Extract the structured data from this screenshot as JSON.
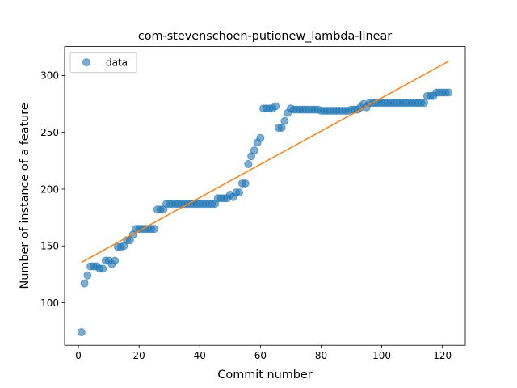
{
  "chart_data": {
    "type": "scatter",
    "title": "com-stevenschoen-putionew_lambda-linear",
    "xlabel": "Commit number",
    "ylabel": "Number of instance of a feature",
    "xlim": [
      -4.55,
      127.55
    ],
    "ylim": [
      62.5,
      325.5
    ],
    "xticks": [
      0,
      20,
      40,
      60,
      80,
      100,
      120
    ],
    "yticks": [
      100,
      150,
      200,
      250,
      300
    ],
    "legend": {
      "position": "upper-left",
      "label": "data"
    },
    "colors": {
      "points": "#1f77b4",
      "fit": "#ff7f0e"
    },
    "series": [
      {
        "name": "data",
        "kind": "scatter",
        "x": [
          1,
          2,
          3,
          4,
          5,
          6,
          7,
          8,
          9,
          10,
          11,
          12,
          13,
          14,
          15,
          16,
          17,
          18,
          19,
          20,
          21,
          22,
          23,
          24,
          25,
          26,
          27,
          28,
          29,
          30,
          31,
          32,
          33,
          34,
          35,
          36,
          37,
          38,
          39,
          40,
          41,
          42,
          43,
          44,
          45,
          46,
          47,
          48,
          49,
          50,
          51,
          52,
          53,
          54,
          55,
          56,
          57,
          58,
          59,
          60,
          61,
          62,
          63,
          64,
          65,
          66,
          67,
          68,
          69,
          70,
          71,
          72,
          73,
          74,
          75,
          76,
          77,
          78,
          79,
          80,
          81,
          82,
          83,
          84,
          85,
          86,
          87,
          88,
          89,
          90,
          91,
          92,
          93,
          94,
          95,
          96,
          97,
          98,
          99,
          100,
          101,
          102,
          103,
          104,
          105,
          106,
          107,
          108,
          109,
          110,
          111,
          112,
          113,
          114,
          115,
          116,
          117,
          118,
          119,
          120,
          121,
          122
        ],
        "y": [
          74,
          117,
          124,
          132,
          132,
          132,
          130,
          130,
          137,
          137,
          134,
          137,
          149,
          149,
          150,
          155,
          155,
          160,
          165,
          165,
          165,
          165,
          165,
          165,
          165,
          182,
          182,
          182,
          187,
          187,
          187,
          187,
          187,
          187,
          187,
          187,
          187,
          187,
          187,
          187,
          187,
          187,
          187,
          187,
          187,
          192,
          192,
          192,
          192,
          195,
          193,
          197,
          197,
          205,
          205,
          222,
          229,
          234,
          241,
          245,
          271,
          271,
          271,
          271,
          273,
          254,
          254,
          260,
          267,
          271,
          270,
          270,
          270,
          270,
          270,
          270,
          270,
          270,
          270,
          269,
          269,
          269,
          269,
          269,
          269,
          269,
          269,
          269,
          269,
          270,
          270,
          270,
          272,
          275,
          272,
          276,
          276,
          276,
          276,
          276,
          276,
          276,
          276,
          276,
          276,
          276,
          276,
          276,
          276,
          276,
          276,
          276,
          276,
          276,
          282,
          282,
          282,
          285,
          285,
          285,
          285,
          285
        ]
      },
      {
        "name": "",
        "kind": "line",
        "x": [
          1,
          122
        ],
        "y": [
          135.5,
          312.5
        ]
      }
    ]
  }
}
